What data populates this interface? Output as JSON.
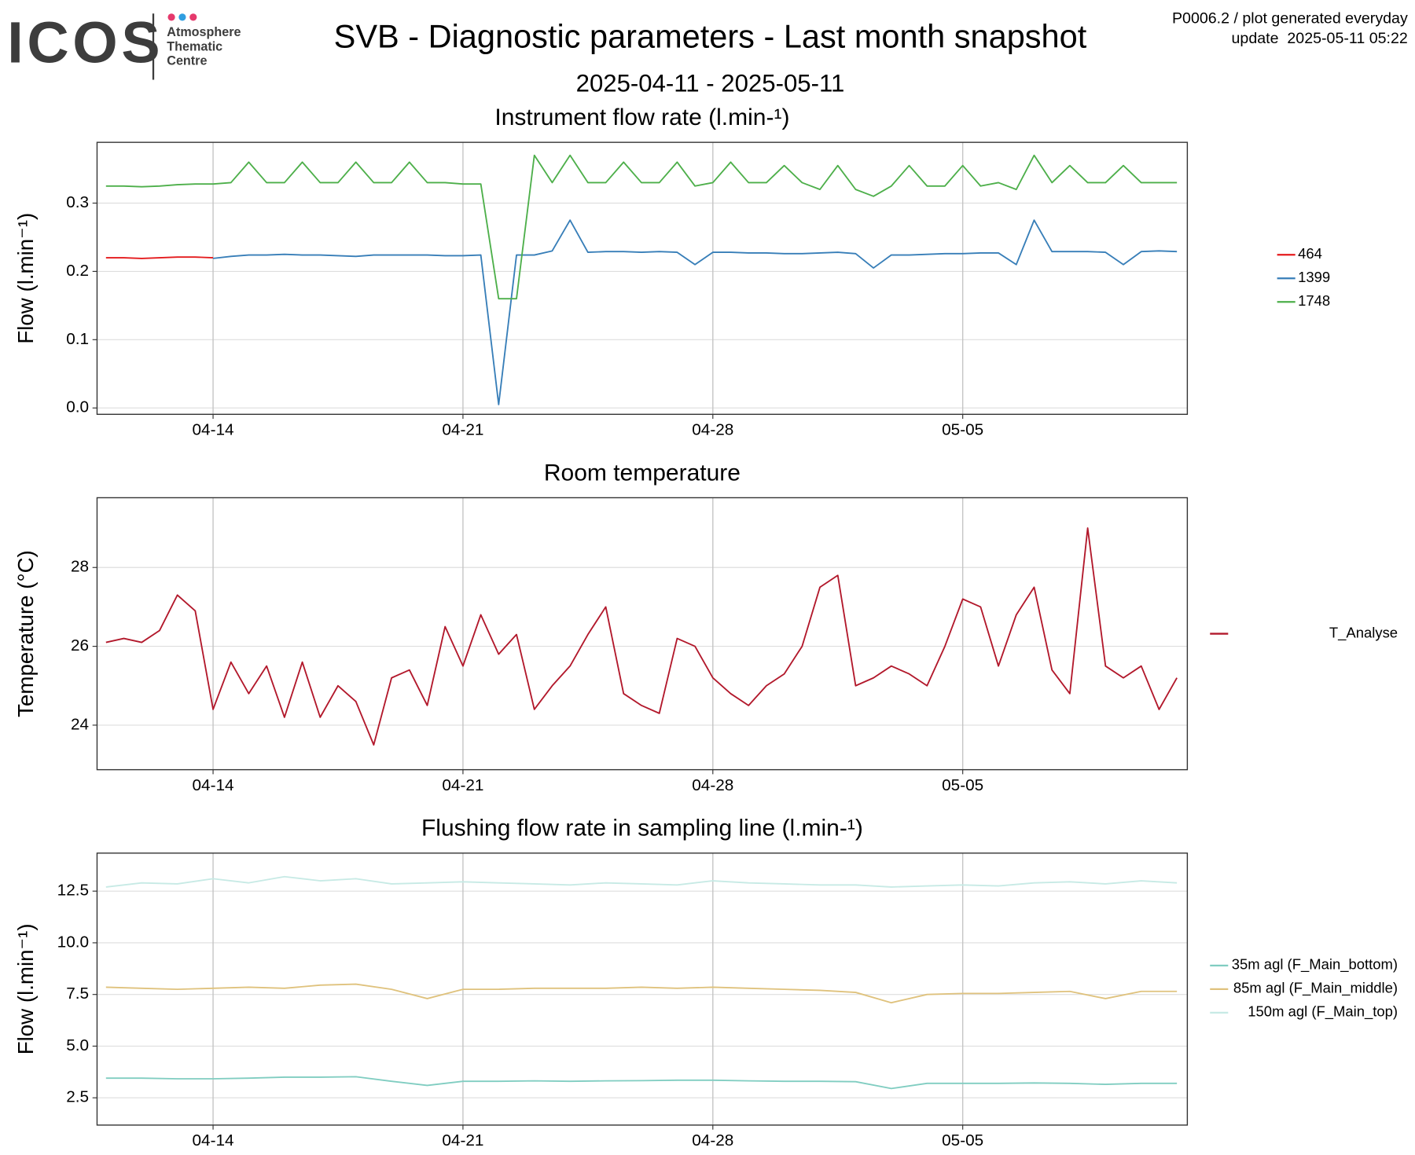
{
  "header": {
    "logo": "ICOS",
    "logo_lines": [
      "Atmosphere",
      "Thematic",
      "Centre"
    ],
    "title": "SVB - Diagnostic parameters - Last month snapshot",
    "subtitle": "2025-04-11 - 2025-05-11",
    "info": [
      "P0006.2 / plot generated everyday",
      "update  2025-05-11 05:22"
    ]
  },
  "chart_data": [
    {
      "type": "line",
      "title": "Instrument flow rate (l.min-¹)",
      "y_label": "Flow (l.min⁻¹)",
      "x": [
        "2025-04-11T00:00",
        "2025-04-11T12:00",
        "2025-04-12T00:00",
        "2025-04-12T12:00",
        "2025-04-13T00:00",
        "2025-04-13T12:00",
        "2025-04-14T00:00",
        "2025-04-14T12:00",
        "2025-04-15T00:00",
        "2025-04-15T12:00",
        "2025-04-16T00:00",
        "2025-04-16T12:00",
        "2025-04-17T00:00",
        "2025-04-17T12:00",
        "2025-04-18T00:00",
        "2025-04-18T12:00",
        "2025-04-19T00:00",
        "2025-04-19T12:00",
        "2025-04-20T00:00",
        "2025-04-20T12:00",
        "2025-04-21T00:00",
        "2025-04-21T12:00",
        "2025-04-22T00:00",
        "2025-04-22T12:00",
        "2025-04-23T00:00",
        "2025-04-23T12:00",
        "2025-04-24T00:00",
        "2025-04-24T12:00",
        "2025-04-25T00:00",
        "2025-04-25T12:00",
        "2025-04-26T00:00",
        "2025-04-26T12:00",
        "2025-04-27T00:00",
        "2025-04-27T12:00",
        "2025-04-28T00:00",
        "2025-04-28T12:00",
        "2025-04-29T00:00",
        "2025-04-29T12:00",
        "2025-04-30T00:00",
        "2025-04-30T12:00",
        "2025-05-01T00:00",
        "2025-05-01T12:00",
        "2025-05-02T00:00",
        "2025-05-02T12:00",
        "2025-05-03T00:00",
        "2025-05-03T12:00",
        "2025-05-04T00:00",
        "2025-05-04T12:00",
        "2025-05-05T00:00",
        "2025-05-05T12:00",
        "2025-05-06T00:00",
        "2025-05-06T12:00",
        "2025-05-07T00:00",
        "2025-05-07T12:00",
        "2025-05-08T00:00",
        "2025-05-08T12:00",
        "2025-05-09T00:00",
        "2025-05-09T12:00",
        "2025-05-10T00:00",
        "2025-05-10T12:00",
        "2025-05-11T00:00"
      ],
      "series": [
        {
          "name": "464",
          "color": "#e41a1c",
          "values": [
            0.22,
            0.22,
            0.219,
            0.22,
            0.221,
            0.221,
            0.22,
            null,
            null,
            null,
            null,
            null,
            null,
            null,
            null,
            null,
            null,
            null,
            null,
            null,
            null,
            null,
            null,
            null,
            null,
            null,
            null,
            null,
            null,
            null,
            null,
            null,
            null,
            null,
            null,
            null,
            null,
            null,
            null,
            null,
            null,
            null,
            null,
            null,
            null,
            null,
            null,
            null,
            null,
            null,
            null,
            null,
            null,
            null,
            null,
            null,
            null,
            null,
            null,
            null,
            null
          ]
        },
        {
          "name": "1399",
          "color": "#377eb8",
          "values": [
            null,
            null,
            null,
            null,
            null,
            null,
            0.219,
            0.222,
            0.224,
            0.224,
            0.225,
            0.224,
            0.224,
            0.223,
            0.222,
            0.224,
            0.224,
            0.224,
            0.224,
            0.223,
            0.223,
            0.224,
            0.005,
            0.224,
            0.224,
            0.23,
            0.275,
            0.228,
            0.229,
            0.229,
            0.228,
            0.229,
            0.228,
            0.21,
            0.228,
            0.228,
            0.227,
            0.227,
            0.226,
            0.226,
            0.227,
            0.228,
            0.226,
            0.205,
            0.224,
            0.224,
            0.225,
            0.226,
            0.226,
            0.227,
            0.227,
            0.21,
            0.275,
            0.229,
            0.229,
            0.229,
            0.228,
            0.21,
            0.229,
            0.23,
            0.229
          ]
        },
        {
          "name": "1748",
          "color": "#4daf4a",
          "values": [
            0.325,
            0.325,
            0.324,
            0.325,
            0.327,
            0.328,
            0.328,
            0.33,
            0.36,
            0.33,
            0.33,
            0.36,
            0.33,
            0.33,
            0.36,
            0.33,
            0.33,
            0.36,
            0.33,
            0.33,
            0.328,
            0.328,
            0.16,
            0.16,
            0.37,
            0.33,
            0.37,
            0.33,
            0.33,
            0.36,
            0.33,
            0.33,
            0.36,
            0.325,
            0.33,
            0.36,
            0.33,
            0.33,
            0.355,
            0.33,
            0.32,
            0.355,
            0.32,
            0.31,
            0.325,
            0.355,
            0.325,
            0.325,
            0.355,
            0.325,
            0.33,
            0.32,
            0.37,
            0.33,
            0.355,
            0.33,
            0.33,
            0.355,
            0.33,
            0.33,
            0.33
          ]
        }
      ],
      "xlim": [
        "2025-04-10T18:00",
        "2025-05-11T07:00"
      ],
      "xticks": [
        {
          "value": "2025-04-14",
          "label": "04-14"
        },
        {
          "value": "2025-04-21",
          "label": "04-21"
        },
        {
          "value": "2025-04-28",
          "label": "04-28"
        },
        {
          "value": "2025-05-05",
          "label": "05-05"
        }
      ],
      "ylim": [
        -0.0093,
        0.389
      ],
      "yticks": [
        {
          "value": 0,
          "label": "0.0"
        },
        0.1,
        0.2,
        0.3
      ],
      "grid": true
    },
    {
      "type": "line",
      "title": "Room temperature",
      "y_label": "Temperature (°C)",
      "x": [
        "2025-04-11T00:00",
        "2025-04-11T12:00",
        "2025-04-12T00:00",
        "2025-04-12T12:00",
        "2025-04-13T00:00",
        "2025-04-13T12:00",
        "2025-04-14T00:00",
        "2025-04-14T12:00",
        "2025-04-15T00:00",
        "2025-04-15T12:00",
        "2025-04-16T00:00",
        "2025-04-16T12:00",
        "2025-04-17T00:00",
        "2025-04-17T12:00",
        "2025-04-18T00:00",
        "2025-04-18T12:00",
        "2025-04-19T00:00",
        "2025-04-19T12:00",
        "2025-04-20T00:00",
        "2025-04-20T12:00",
        "2025-04-21T00:00",
        "2025-04-21T12:00",
        "2025-04-22T00:00",
        "2025-04-22T12:00",
        "2025-04-23T00:00",
        "2025-04-23T12:00",
        "2025-04-24T00:00",
        "2025-04-24T12:00",
        "2025-04-25T00:00",
        "2025-04-25T12:00",
        "2025-04-26T00:00",
        "2025-04-26T12:00",
        "2025-04-27T00:00",
        "2025-04-27T12:00",
        "2025-04-28T00:00",
        "2025-04-28T12:00",
        "2025-04-29T00:00",
        "2025-04-29T12:00",
        "2025-04-30T00:00",
        "2025-04-30T12:00",
        "2025-05-01T00:00",
        "2025-05-01T12:00",
        "2025-05-02T00:00",
        "2025-05-02T12:00",
        "2025-05-03T00:00",
        "2025-05-03T12:00",
        "2025-05-04T00:00",
        "2025-05-04T12:00",
        "2025-05-05T00:00",
        "2025-05-05T12:00",
        "2025-05-06T00:00",
        "2025-05-06T12:00",
        "2025-05-07T00:00",
        "2025-05-07T12:00",
        "2025-05-08T00:00",
        "2025-05-08T12:00",
        "2025-05-09T00:00",
        "2025-05-09T12:00",
        "2025-05-10T00:00",
        "2025-05-10T12:00",
        "2025-05-11T00:00"
      ],
      "series": [
        {
          "name": "T_Analyse",
          "color": "#b2182b",
          "values": [
            26.1,
            26.2,
            26.1,
            26.4,
            27.3,
            26.9,
            24.4,
            25.6,
            24.8,
            25.5,
            24.2,
            25.6,
            24.2,
            25.0,
            24.6,
            23.5,
            25.2,
            25.4,
            24.5,
            26.5,
            25.5,
            26.8,
            25.8,
            26.3,
            24.4,
            25.0,
            25.5,
            26.3,
            27.0,
            24.8,
            24.5,
            24.3,
            26.2,
            26.0,
            25.2,
            24.8,
            24.5,
            25.0,
            25.3,
            26.0,
            27.5,
            27.8,
            25.0,
            25.2,
            25.5,
            25.3,
            25.0,
            26.0,
            27.2,
            27.0,
            25.5,
            26.8,
            27.5,
            25.4,
            24.8,
            29.0,
            25.5,
            25.2,
            25.5,
            24.4,
            25.2
          ]
        }
      ],
      "xlim": [
        "2025-04-10T18:00",
        "2025-05-11T07:00"
      ],
      "xticks": [
        {
          "value": "2025-04-14",
          "label": "04-14"
        },
        {
          "value": "2025-04-21",
          "label": "04-21"
        },
        {
          "value": "2025-04-28",
          "label": "04-28"
        },
        {
          "value": "2025-05-05",
          "label": "05-05"
        }
      ],
      "ylim": [
        22.87,
        29.77
      ],
      "yticks": [
        24,
        26,
        28
      ],
      "grid": true
    },
    {
      "type": "line",
      "title": "Flushing flow rate in sampling line (l.min-¹)",
      "y_label": "Flow (l.min⁻¹)",
      "x": [
        "2025-04-11",
        "2025-04-12",
        "2025-04-13",
        "2025-04-14",
        "2025-04-15",
        "2025-04-16",
        "2025-04-17",
        "2025-04-18",
        "2025-04-19",
        "2025-04-20",
        "2025-04-21",
        "2025-04-22",
        "2025-04-23",
        "2025-04-24",
        "2025-04-25",
        "2025-04-26",
        "2025-04-27",
        "2025-04-28",
        "2025-04-29",
        "2025-04-30",
        "2025-05-01",
        "2025-05-02",
        "2025-05-03",
        "2025-05-04",
        "2025-05-05",
        "2025-05-06",
        "2025-05-07",
        "2025-05-08",
        "2025-05-09",
        "2025-05-10",
        "2025-05-11"
      ],
      "series": [
        {
          "name": "35m agl (F_Main_bottom)",
          "color": "#80cdc1",
          "values": [
            3.45,
            3.45,
            3.42,
            3.42,
            3.45,
            3.5,
            3.5,
            3.52,
            3.3,
            3.1,
            3.3,
            3.3,
            3.32,
            3.3,
            3.32,
            3.33,
            3.35,
            3.35,
            3.32,
            3.3,
            3.3,
            3.28,
            2.95,
            3.2,
            3.2,
            3.2,
            3.22,
            3.2,
            3.15,
            3.2,
            3.2
          ]
        },
        {
          "name": "85m agl (F_Main_middle)",
          "color": "#dfc27d",
          "values": [
            7.85,
            7.8,
            7.75,
            7.8,
            7.85,
            7.8,
            7.95,
            8.0,
            7.75,
            7.3,
            7.75,
            7.75,
            7.8,
            7.8,
            7.8,
            7.85,
            7.8,
            7.85,
            7.8,
            7.75,
            7.7,
            7.6,
            7.1,
            7.5,
            7.55,
            7.55,
            7.6,
            7.65,
            7.3,
            7.65,
            7.65
          ]
        },
        {
          "name": "150m agl (F_Main_top)",
          "color": "#c7eae5",
          "values": [
            12.7,
            12.9,
            12.85,
            13.1,
            12.9,
            13.2,
            13.0,
            13.1,
            12.85,
            12.9,
            12.95,
            12.9,
            12.85,
            12.8,
            12.9,
            12.85,
            12.8,
            13.0,
            12.9,
            12.85,
            12.8,
            12.8,
            12.7,
            12.75,
            12.8,
            12.75,
            12.9,
            12.95,
            12.85,
            13.0,
            12.9
          ]
        }
      ],
      "xlim": [
        "2025-04-10T18:00",
        "2025-05-11T07:00"
      ],
      "xticks": [
        {
          "value": "2025-04-14",
          "label": "04-14"
        },
        {
          "value": "2025-04-21",
          "label": "04-21"
        },
        {
          "value": "2025-04-28",
          "label": "04-28"
        },
        {
          "value": "2025-05-05",
          "label": "05-05"
        }
      ],
      "ylim": [
        1.18,
        14.34
      ],
      "yticks": [
        2.5,
        {
          "value": 5,
          "label": "5.0"
        },
        7.5,
        {
          "value": 10,
          "label": "10.0"
        },
        12.5
      ],
      "grid": true
    }
  ]
}
